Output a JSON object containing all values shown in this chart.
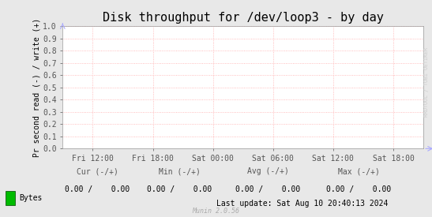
{
  "title": "Disk throughput for /dev/loop3 - by day",
  "ylabel": "Pr second read (-) / write (+)",
  "background_color": "#e8e8e8",
  "plot_bg_color": "#ffffff",
  "grid_color": "#ffaaaa",
  "axis_color": "#555555",
  "ylim": [
    0.0,
    1.0
  ],
  "yticks": [
    0.0,
    0.1,
    0.2,
    0.3,
    0.4,
    0.5,
    0.6,
    0.7,
    0.8,
    0.9,
    1.0
  ],
  "xtick_labels": [
    "Fri 12:00",
    "Fri 18:00",
    "Sat 00:00",
    "Sat 06:00",
    "Sat 12:00",
    "Sat 18:00"
  ],
  "xtick_positions": [
    0,
    1,
    2,
    3,
    4,
    5
  ],
  "legend_label": "Bytes",
  "legend_color": "#00bb00",
  "cur_label": "Cur (-/+)",
  "min_label": "Min (-/+)",
  "avg_label": "Avg (-/+)",
  "max_label": "Max (-/+)",
  "cur_val": "0.00 /    0.00",
  "min_val": "0.00 /    0.00",
  "avg_val": "0.00 /    0.00",
  "max_val": "0.00 /    0.00",
  "last_update": "Last update: Sat Aug 10 20:40:13 2024",
  "munin_label": "Munin 2.0.56",
  "rrdtool_label": "RRDTOOL / TOBI OETIKER",
  "title_fontsize": 11,
  "axis_label_fontsize": 7,
  "tick_fontsize": 7,
  "annotation_fontsize": 7,
  "arrow_color": "#aaaaff"
}
